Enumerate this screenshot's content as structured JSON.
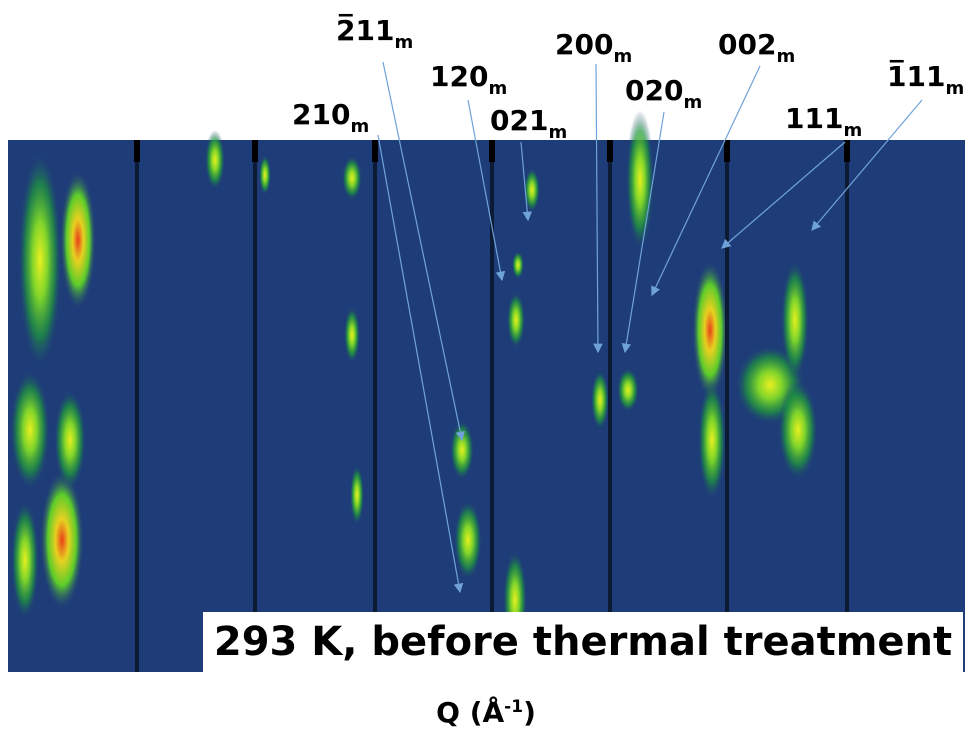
{
  "labels": [
    {
      "text": "2̅11",
      "sub": "m"
    },
    {
      "text": "120",
      "sub": "m"
    },
    {
      "text": "210",
      "sub": "m"
    },
    {
      "text": "021",
      "sub": "m"
    },
    {
      "text": "200",
      "sub": "m"
    },
    {
      "text": "020",
      "sub": "m"
    },
    {
      "text": "002",
      "sub": "m"
    },
    {
      "text": "111",
      "sub": "m"
    },
    {
      "text": "1̅11",
      "sub": "m"
    }
  ],
  "caption": "293 K, before thermal treatment",
  "axis_label": {
    "text": "Q (Å",
    "sup": "-1",
    "close": ")"
  }
}
